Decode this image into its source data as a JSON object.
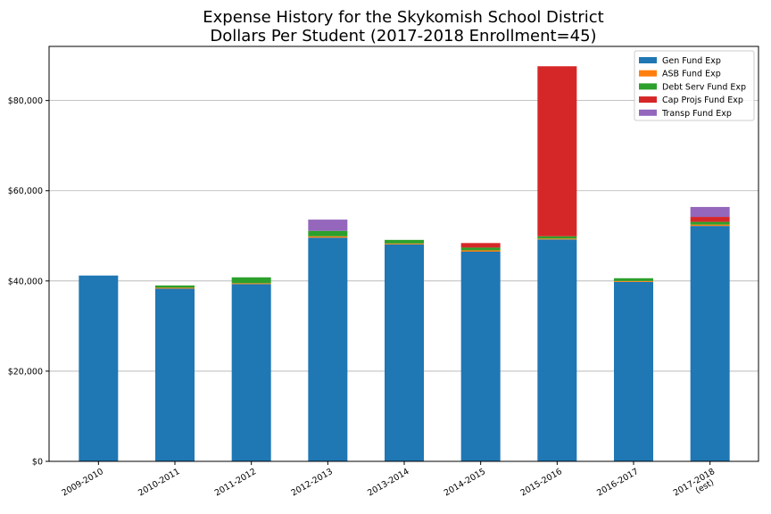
{
  "chart_data": {
    "type": "bar",
    "stacked": true,
    "title": [
      "Expense History for the Skykomish School District",
      "Dollars Per Student (2017-2018 Enrollment=45)"
    ],
    "xlabel": "",
    "ylabel": "",
    "categories": [
      "2009-2010",
      "2010-2011",
      "2011-2012",
      "2012-2013",
      "2013-2014",
      "2014-2015",
      "2015-2016",
      "2016-2017",
      "2017-2018\n(est)"
    ],
    "ylim": [
      0,
      92000
    ],
    "yticks": [
      0,
      20000,
      40000,
      60000,
      80000
    ],
    "ytick_labels": [
      "$0",
      "$20,000",
      "$40,000",
      "$60,000",
      "$80,000"
    ],
    "grid": "horizontal",
    "legend": "top-right",
    "series": [
      {
        "name": "Gen Fund Exp",
        "color": "#1f77b4",
        "values": [
          41200,
          38300,
          39300,
          49600,
          48100,
          46500,
          49200,
          39800,
          52200
        ]
      },
      {
        "name": "ASB Fund Exp",
        "color": "#ff7f0e",
        "values": [
          0,
          200,
          200,
          300,
          200,
          300,
          200,
          200,
          300
        ]
      },
      {
        "name": "Debt Serv Fund Exp",
        "color": "#2ca02c",
        "values": [
          0,
          500,
          1300,
          1200,
          800,
          600,
          500,
          600,
          600
        ]
      },
      {
        "name": "Cap Projs Fund Exp",
        "color": "#d62728",
        "values": [
          0,
          0,
          0,
          0,
          0,
          1000,
          37700,
          0,
          1100
        ]
      },
      {
        "name": "Transp Fund Exp",
        "color": "#9467bd",
        "values": [
          0,
          0,
          0,
          2500,
          0,
          0,
          0,
          0,
          2200
        ]
      }
    ]
  }
}
